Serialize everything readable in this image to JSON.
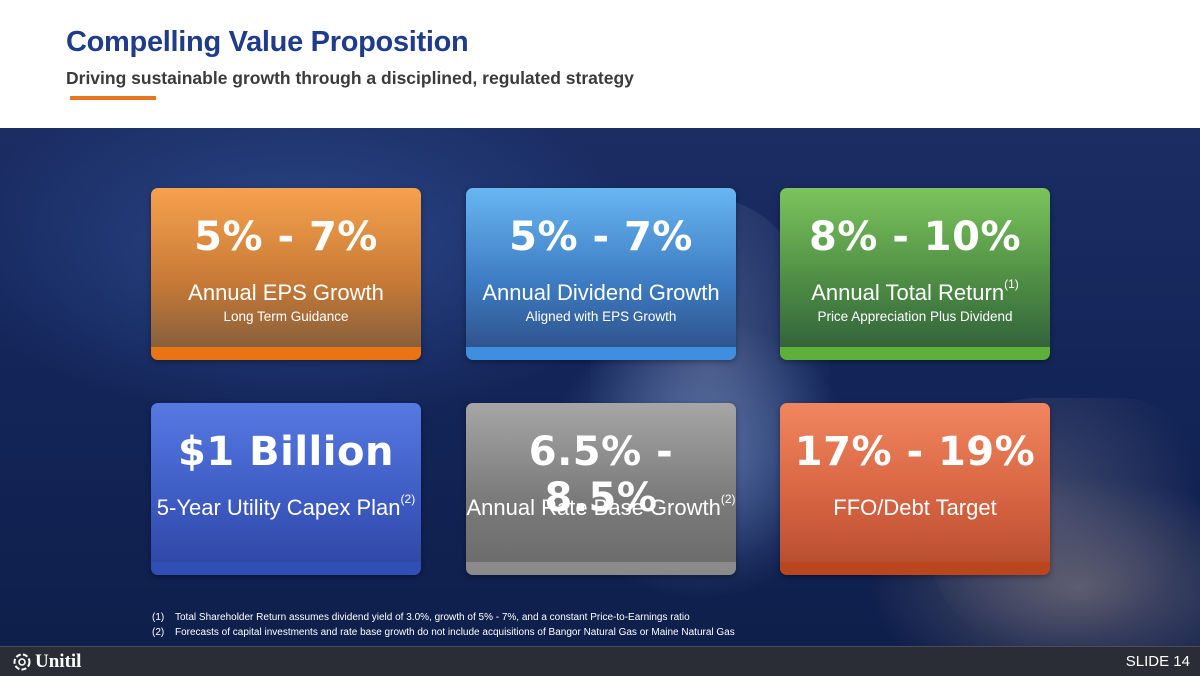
{
  "header": {
    "title": "Compelling Value Proposition",
    "subtitle": "Driving sustainable growth through a disciplined, regulated strategy"
  },
  "cards": [
    {
      "value": "5% - 7%",
      "label": "Annual EPS Growth",
      "sup": "",
      "detail": "Long Term Guidance"
    },
    {
      "value": "5% - 7%",
      "label": "Annual Dividend Growth",
      "sup": "",
      "detail": "Aligned with EPS Growth"
    },
    {
      "value": "8% - 10%",
      "label": "Annual Total Return",
      "sup": "(1)",
      "detail": "Price Appreciation Plus Dividend"
    },
    {
      "value": "$1 Billion",
      "label": "5-Year Utility Capex Plan",
      "sup": "(2)",
      "detail": ""
    },
    {
      "value": "6.5% - 8.5%",
      "label": "Annual Rate Base Growth",
      "sup": "(2)",
      "detail": ""
    },
    {
      "value": "17% - 19%",
      "label": "FFO/Debt Target",
      "sup": "",
      "detail": ""
    }
  ],
  "footnotes": [
    {
      "num": "(1)",
      "text": "Total Shareholder Return assumes dividend yield of 3.0%, growth of 5% - 7%, and a constant Price-to-Earnings ratio"
    },
    {
      "num": "(2)",
      "text": "Forecasts of capital investments and rate base growth do not include acquisitions of Bangor Natural Gas or Maine Natural Gas"
    }
  ],
  "footer": {
    "logo_text": "Unitil",
    "logo_icon": "unitil-logo-icon",
    "slide_label": "SLIDE 14"
  },
  "colors": {
    "title": "#1f3c8c",
    "accent": "#e8761c",
    "footer_bg": "#2a2d36"
  }
}
